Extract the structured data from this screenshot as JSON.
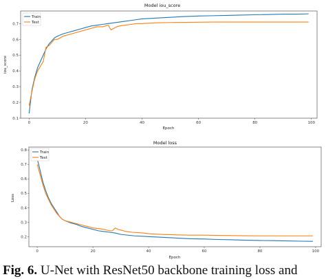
{
  "figure": {
    "caption_prefix": "Fig. 6.",
    "caption_text": "U-Net with ResNet50 backbone training loss and"
  },
  "colors": {
    "train": "#1f77b4",
    "test": "#ff7f0e",
    "grid": "#e6e6e6",
    "axis": "#555555"
  },
  "chart_data": [
    {
      "type": "line",
      "title": "Model iou_score",
      "xlabel": "Epoch",
      "ylabel": "iou_score",
      "xlim": [
        -3,
        102
      ],
      "ylim": [
        0.1,
        0.78
      ],
      "xticks": [
        0,
        20,
        40,
        60,
        80,
        100
      ],
      "yticks": [
        0.1,
        0.2,
        0.3,
        0.4,
        0.5,
        0.6,
        0.7
      ],
      "legend": {
        "placement": "top-left",
        "entries": [
          "Train",
          "Test"
        ]
      },
      "grid": false,
      "series": [
        {
          "name": "Train",
          "x": [
            0,
            1,
            2,
            3,
            4,
            5,
            6,
            7,
            8,
            9,
            10,
            12,
            14,
            16,
            18,
            20,
            22,
            24,
            26,
            28,
            30,
            32,
            34,
            36,
            38,
            40,
            45,
            50,
            55,
            60,
            65,
            70,
            75,
            80,
            85,
            90,
            95,
            99
          ],
          "y": [
            0.13,
            0.28,
            0.36,
            0.42,
            0.46,
            0.5,
            0.54,
            0.57,
            0.59,
            0.61,
            0.62,
            0.635,
            0.645,
            0.655,
            0.665,
            0.675,
            0.685,
            0.69,
            0.695,
            0.7,
            0.705,
            0.71,
            0.715,
            0.72,
            0.725,
            0.73,
            0.735,
            0.74,
            0.745,
            0.748,
            0.75,
            0.752,
            0.754,
            0.756,
            0.758,
            0.76,
            0.76,
            0.762
          ]
        },
        {
          "name": "Test",
          "x": [
            0,
            1,
            2,
            3,
            4,
            5,
            6,
            7,
            8,
            9,
            10,
            12,
            14,
            16,
            18,
            20,
            22,
            24,
            26,
            28,
            29,
            30,
            31,
            32,
            34,
            36,
            38,
            40,
            45,
            50,
            55,
            60,
            65,
            70,
            75,
            80,
            85,
            90,
            95,
            99
          ],
          "y": [
            0.18,
            0.27,
            0.35,
            0.4,
            0.43,
            0.46,
            0.55,
            0.56,
            0.58,
            0.6,
            0.6,
            0.62,
            0.63,
            0.64,
            0.65,
            0.66,
            0.67,
            0.68,
            0.68,
            0.69,
            0.66,
            0.67,
            0.68,
            0.685,
            0.69,
            0.695,
            0.7,
            0.7,
            0.705,
            0.707,
            0.708,
            0.709,
            0.71,
            0.71,
            0.71,
            0.71,
            0.71,
            0.71,
            0.71,
            0.71
          ]
        }
      ]
    },
    {
      "type": "line",
      "title": "Model loss",
      "xlabel": "Epoch",
      "ylabel": "Loss",
      "xlim": [
        -3,
        102
      ],
      "ylim": [
        0.13,
        0.82
      ],
      "xticks": [
        0,
        20,
        40,
        60,
        80,
        100
      ],
      "yticks": [
        0.2,
        0.3,
        0.4,
        0.5,
        0.6,
        0.7,
        0.8
      ],
      "legend": {
        "placement": "top-left",
        "entries": [
          "Train",
          "Test"
        ]
      },
      "grid": false,
      "series": [
        {
          "name": "Train",
          "x": [
            0,
            1,
            2,
            3,
            4,
            5,
            6,
            7,
            8,
            9,
            10,
            12,
            14,
            16,
            18,
            20,
            22,
            24,
            26,
            28,
            30,
            35,
            40,
            45,
            50,
            55,
            60,
            65,
            70,
            75,
            80,
            85,
            90,
            95,
            99
          ],
          "y": [
            0.74,
            0.66,
            0.58,
            0.52,
            0.47,
            0.43,
            0.4,
            0.37,
            0.34,
            0.32,
            0.31,
            0.295,
            0.285,
            0.27,
            0.26,
            0.25,
            0.24,
            0.235,
            0.23,
            0.225,
            0.215,
            0.205,
            0.2,
            0.195,
            0.19,
            0.185,
            0.183,
            0.18,
            0.178,
            0.175,
            0.173,
            0.172,
            0.17,
            0.168,
            0.167
          ]
        },
        {
          "name": "Test",
          "x": [
            0,
            1,
            2,
            3,
            4,
            5,
            6,
            7,
            8,
            9,
            10,
            12,
            14,
            16,
            18,
            20,
            22,
            24,
            26,
            27,
            28,
            29,
            30,
            31,
            32,
            34,
            36,
            38,
            40,
            45,
            50,
            55,
            60,
            65,
            70,
            75,
            80,
            85,
            90,
            95,
            99
          ],
          "y": [
            0.7,
            0.63,
            0.56,
            0.5,
            0.46,
            0.42,
            0.39,
            0.36,
            0.34,
            0.32,
            0.31,
            0.3,
            0.29,
            0.28,
            0.27,
            0.26,
            0.255,
            0.25,
            0.24,
            0.24,
            0.26,
            0.25,
            0.245,
            0.24,
            0.235,
            0.23,
            0.228,
            0.225,
            0.22,
            0.215,
            0.212,
            0.21,
            0.21,
            0.208,
            0.207,
            0.206,
            0.205,
            0.205,
            0.205,
            0.205,
            0.205
          ]
        }
      ]
    }
  ]
}
